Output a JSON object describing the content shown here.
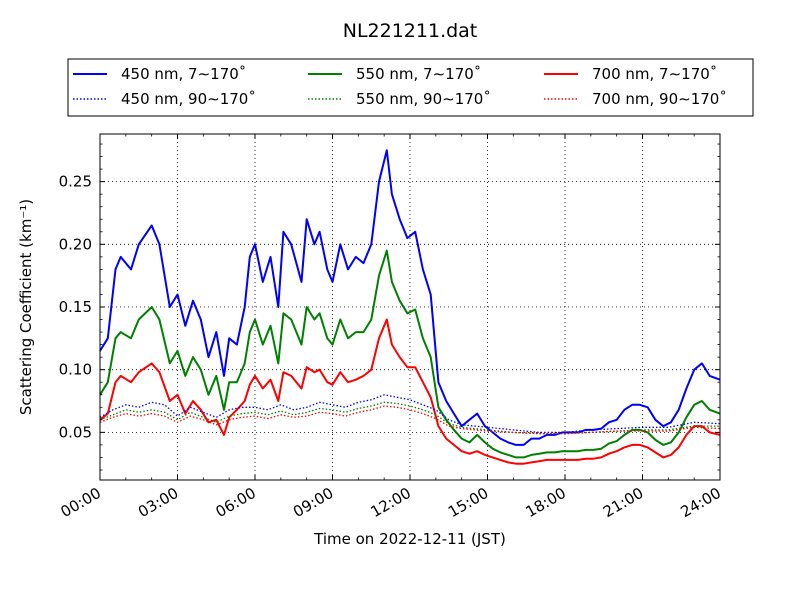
{
  "chart_data": {
    "type": "line",
    "title": "NL221211.dat",
    "xlabel": "Time on 2022-12-11 (JST)",
    "ylabel": "Scattering Coefficient (km⁻¹)",
    "xlim": [
      0,
      24
    ],
    "ylim": [
      0.012,
      0.288
    ],
    "x_ticks": [
      0,
      3,
      6,
      9,
      12,
      15,
      18,
      21,
      24
    ],
    "x_tick_labels": [
      "00:00",
      "03:00",
      "06:00",
      "09:00",
      "12:00",
      "15:00",
      "18:00",
      "21:00",
      "24:00"
    ],
    "y_ticks": [
      0.05,
      0.1,
      0.15,
      0.2,
      0.25
    ],
    "y_tick_labels": [
      "0.05",
      "0.10",
      "0.15",
      "0.20",
      "0.25"
    ],
    "grid": true,
    "legend_position": "top, above plot, 3 columns",
    "series": [
      {
        "name": "450 nm, 7∼170˚",
        "color": "#0000ff",
        "style": "solid",
        "x": [
          0,
          0.3,
          0.6,
          0.8,
          1.2,
          1.5,
          2.0,
          2.3,
          2.7,
          3.0,
          3.3,
          3.6,
          3.9,
          4.2,
          4.5,
          4.8,
          5.0,
          5.3,
          5.6,
          5.8,
          6.0,
          6.3,
          6.6,
          6.9,
          7.1,
          7.4,
          7.8,
          8.0,
          8.3,
          8.5,
          8.8,
          9.0,
          9.3,
          9.6,
          9.9,
          10.2,
          10.5,
          10.8,
          11.1,
          11.3,
          11.6,
          11.9,
          12.2,
          12.5,
          12.8,
          13.1,
          13.4,
          13.7,
          14.0,
          14.3,
          14.6,
          14.9,
          15.2,
          15.5,
          15.8,
          16.1,
          16.4,
          16.7,
          17.0,
          17.3,
          17.6,
          17.9,
          18.2,
          18.5,
          18.8,
          19.1,
          19.4,
          19.7,
          20.0,
          20.3,
          20.6,
          20.9,
          21.2,
          21.5,
          21.8,
          22.1,
          22.4,
          22.7,
          23.0,
          23.3,
          23.6,
          24.0
        ],
        "values": [
          0.115,
          0.125,
          0.18,
          0.19,
          0.18,
          0.2,
          0.215,
          0.2,
          0.15,
          0.16,
          0.135,
          0.155,
          0.14,
          0.11,
          0.13,
          0.095,
          0.125,
          0.12,
          0.15,
          0.19,
          0.2,
          0.17,
          0.19,
          0.15,
          0.21,
          0.2,
          0.17,
          0.22,
          0.2,
          0.21,
          0.18,
          0.17,
          0.2,
          0.18,
          0.19,
          0.185,
          0.2,
          0.25,
          0.275,
          0.24,
          0.22,
          0.205,
          0.21,
          0.18,
          0.16,
          0.09,
          0.075,
          0.065,
          0.055,
          0.06,
          0.065,
          0.055,
          0.05,
          0.045,
          0.042,
          0.04,
          0.04,
          0.045,
          0.045,
          0.048,
          0.048,
          0.05,
          0.05,
          0.05,
          0.052,
          0.052,
          0.053,
          0.058,
          0.06,
          0.068,
          0.072,
          0.072,
          0.07,
          0.06,
          0.055,
          0.058,
          0.068,
          0.085,
          0.1,
          0.105,
          0.095,
          0.092
        ]
      },
      {
        "name": "550 nm, 7∼170˚",
        "color": "#008000",
        "style": "solid",
        "x": [
          0,
          0.3,
          0.6,
          0.8,
          1.2,
          1.5,
          2.0,
          2.3,
          2.7,
          3.0,
          3.3,
          3.6,
          3.9,
          4.2,
          4.5,
          4.8,
          5.0,
          5.3,
          5.6,
          5.8,
          6.0,
          6.3,
          6.6,
          6.9,
          7.1,
          7.4,
          7.8,
          8.0,
          8.3,
          8.5,
          8.8,
          9.0,
          9.3,
          9.6,
          9.9,
          10.2,
          10.5,
          10.8,
          11.1,
          11.3,
          11.6,
          11.9,
          12.2,
          12.5,
          12.8,
          13.1,
          13.4,
          13.7,
          14.0,
          14.3,
          14.6,
          14.9,
          15.2,
          15.5,
          15.8,
          16.1,
          16.4,
          16.7,
          17.0,
          17.3,
          17.6,
          17.9,
          18.2,
          18.5,
          18.8,
          19.1,
          19.4,
          19.7,
          20.0,
          20.3,
          20.6,
          20.9,
          21.2,
          21.5,
          21.8,
          22.1,
          22.4,
          22.7,
          23.0,
          23.3,
          23.6,
          24.0
        ],
        "values": [
          0.08,
          0.09,
          0.125,
          0.13,
          0.125,
          0.14,
          0.15,
          0.14,
          0.105,
          0.115,
          0.095,
          0.11,
          0.1,
          0.08,
          0.095,
          0.068,
          0.09,
          0.09,
          0.105,
          0.13,
          0.14,
          0.12,
          0.135,
          0.105,
          0.145,
          0.14,
          0.12,
          0.15,
          0.14,
          0.145,
          0.125,
          0.12,
          0.14,
          0.125,
          0.13,
          0.13,
          0.14,
          0.175,
          0.195,
          0.17,
          0.155,
          0.145,
          0.148,
          0.125,
          0.11,
          0.07,
          0.06,
          0.052,
          0.045,
          0.042,
          0.048,
          0.042,
          0.037,
          0.034,
          0.032,
          0.03,
          0.03,
          0.032,
          0.033,
          0.034,
          0.034,
          0.035,
          0.035,
          0.035,
          0.036,
          0.036,
          0.037,
          0.041,
          0.043,
          0.048,
          0.052,
          0.052,
          0.05,
          0.044,
          0.04,
          0.042,
          0.05,
          0.062,
          0.072,
          0.075,
          0.068,
          0.065
        ]
      },
      {
        "name": "700 nm, 7∼170˚",
        "color": "#ff0000",
        "style": "solid",
        "x": [
          0,
          0.3,
          0.6,
          0.8,
          1.2,
          1.5,
          2.0,
          2.3,
          2.7,
          3.0,
          3.3,
          3.6,
          3.9,
          4.2,
          4.5,
          4.8,
          5.0,
          5.3,
          5.6,
          5.8,
          6.0,
          6.3,
          6.6,
          6.9,
          7.1,
          7.4,
          7.8,
          8.0,
          8.3,
          8.5,
          8.8,
          9.0,
          9.3,
          9.6,
          9.9,
          10.2,
          10.5,
          10.8,
          11.1,
          11.3,
          11.6,
          11.9,
          12.2,
          12.5,
          12.8,
          13.1,
          13.4,
          13.7,
          14.0,
          14.3,
          14.6,
          14.9,
          15.2,
          15.5,
          15.8,
          16.1,
          16.4,
          16.7,
          17.0,
          17.3,
          17.6,
          17.9,
          18.2,
          18.5,
          18.8,
          19.1,
          19.4,
          19.7,
          20.0,
          20.3,
          20.6,
          20.9,
          21.2,
          21.5,
          21.8,
          22.1,
          22.4,
          22.7,
          23.0,
          23.3,
          23.6,
          24.0
        ],
        "values": [
          0.06,
          0.065,
          0.09,
          0.095,
          0.09,
          0.098,
          0.105,
          0.098,
          0.075,
          0.08,
          0.065,
          0.075,
          0.068,
          0.058,
          0.06,
          0.048,
          0.062,
          0.068,
          0.075,
          0.088,
          0.095,
          0.085,
          0.092,
          0.075,
          0.098,
          0.095,
          0.085,
          0.102,
          0.098,
          0.1,
          0.09,
          0.088,
          0.098,
          0.09,
          0.092,
          0.095,
          0.1,
          0.125,
          0.14,
          0.12,
          0.11,
          0.102,
          0.102,
          0.09,
          0.078,
          0.055,
          0.045,
          0.04,
          0.035,
          0.033,
          0.035,
          0.032,
          0.03,
          0.028,
          0.026,
          0.025,
          0.025,
          0.026,
          0.027,
          0.028,
          0.028,
          0.028,
          0.028,
          0.028,
          0.029,
          0.029,
          0.03,
          0.033,
          0.035,
          0.038,
          0.04,
          0.04,
          0.038,
          0.034,
          0.03,
          0.032,
          0.038,
          0.048,
          0.055,
          0.055,
          0.05,
          0.048
        ]
      },
      {
        "name": "450 nm, 90∼170˚",
        "color": "#0000ff",
        "style": "dotted",
        "x": [
          0,
          0.5,
          1.0,
          1.5,
          2.0,
          2.5,
          3.0,
          3.5,
          4.0,
          4.5,
          5.0,
          5.5,
          6.0,
          6.5,
          7.0,
          7.5,
          8.0,
          8.5,
          9.0,
          9.5,
          10.0,
          10.5,
          11.0,
          11.5,
          12.0,
          12.5,
          13.0,
          13.5,
          14.0,
          15.0,
          16.0,
          17.0,
          18.0,
          19.0,
          20.0,
          21.0,
          22.0,
          23.0,
          24.0
        ],
        "values": [
          0.062,
          0.068,
          0.072,
          0.07,
          0.074,
          0.072,
          0.063,
          0.07,
          0.066,
          0.062,
          0.068,
          0.07,
          0.07,
          0.068,
          0.072,
          0.068,
          0.07,
          0.074,
          0.072,
          0.07,
          0.074,
          0.076,
          0.08,
          0.078,
          0.076,
          0.072,
          0.068,
          0.06,
          0.056,
          0.054,
          0.052,
          0.05,
          0.05,
          0.052,
          0.053,
          0.054,
          0.054,
          0.058,
          0.057
        ]
      },
      {
        "name": "550 nm, 90∼170˚",
        "color": "#008000",
        "style": "dotted",
        "x": [
          0,
          0.5,
          1.0,
          1.5,
          2.0,
          2.5,
          3.0,
          3.5,
          4.0,
          4.5,
          5.0,
          5.5,
          6.0,
          6.5,
          7.0,
          7.5,
          8.0,
          8.5,
          9.0,
          9.5,
          10.0,
          10.5,
          11.0,
          11.5,
          12.0,
          12.5,
          13.0,
          13.5,
          14.0,
          15.0,
          16.0,
          17.0,
          18.0,
          19.0,
          20.0,
          21.0,
          22.0,
          23.0,
          24.0
        ],
        "values": [
          0.06,
          0.064,
          0.068,
          0.066,
          0.068,
          0.066,
          0.06,
          0.066,
          0.062,
          0.058,
          0.063,
          0.065,
          0.066,
          0.064,
          0.067,
          0.064,
          0.066,
          0.069,
          0.068,
          0.066,
          0.069,
          0.071,
          0.074,
          0.073,
          0.071,
          0.068,
          0.064,
          0.057,
          0.054,
          0.052,
          0.05,
          0.049,
          0.049,
          0.05,
          0.051,
          0.052,
          0.052,
          0.055,
          0.055
        ]
      },
      {
        "name": "700 nm, 90∼170˚",
        "color": "#ff0000",
        "style": "dotted",
        "x": [
          0,
          0.5,
          1.0,
          1.5,
          2.0,
          2.5,
          3.0,
          3.5,
          4.0,
          4.5,
          5.0,
          5.5,
          6.0,
          6.5,
          7.0,
          7.5,
          8.0,
          8.5,
          9.0,
          9.5,
          10.0,
          10.5,
          11.0,
          11.5,
          12.0,
          12.5,
          13.0,
          13.5,
          14.0,
          15.0,
          16.0,
          17.0,
          18.0,
          19.0,
          20.0,
          21.0,
          22.0,
          23.0,
          24.0
        ],
        "values": [
          0.058,
          0.062,
          0.065,
          0.063,
          0.065,
          0.063,
          0.058,
          0.063,
          0.06,
          0.056,
          0.06,
          0.062,
          0.063,
          0.061,
          0.064,
          0.062,
          0.063,
          0.066,
          0.065,
          0.063,
          0.066,
          0.068,
          0.071,
          0.07,
          0.068,
          0.065,
          0.061,
          0.055,
          0.053,
          0.051,
          0.05,
          0.049,
          0.049,
          0.05,
          0.051,
          0.051,
          0.051,
          0.054,
          0.053
        ]
      }
    ]
  }
}
